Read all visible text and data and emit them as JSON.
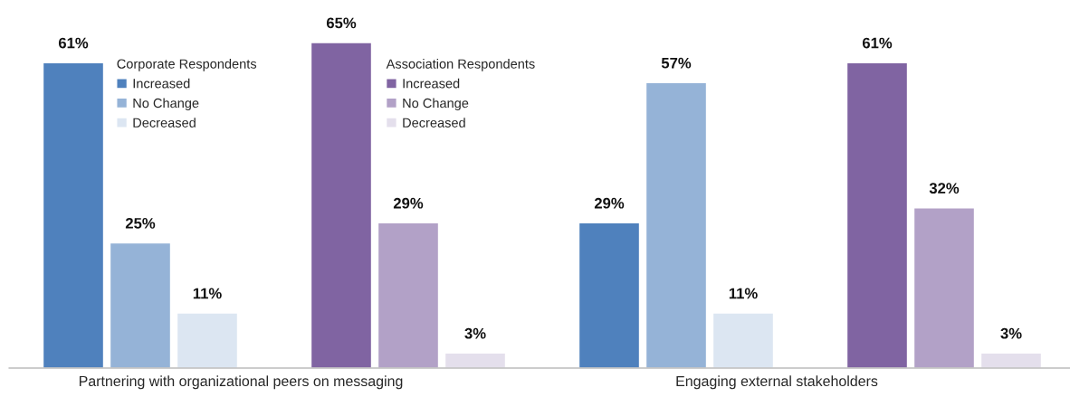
{
  "chart_data": {
    "type": "bar",
    "categories": [
      "Partnering with organizational peers on messaging",
      "Engaging external stakeholders"
    ],
    "series": [
      {
        "name": "Increased",
        "color": "#4f81bd",
        "values": [
          61,
          29
        ],
        "value_labels": [
          "61%",
          "29%"
        ]
      },
      {
        "name": "No Change",
        "color": "#95b3d7",
        "values": [
          25,
          57
        ],
        "value_labels": [
          "25%",
          "57%"
        ]
      },
      {
        "name": "Decreased",
        "color": "#dce6f2",
        "values": [
          11,
          11
        ],
        "value_labels": [
          "11%",
          "11%"
        ]
      },
      {
        "name": "Increased",
        "color": "#8064a2",
        "values": [
          65,
          61
        ],
        "value_labels": [
          "65%",
          "61%"
        ]
      },
      {
        "name": "No Change",
        "color": "#b2a1c7",
        "values": [
          29,
          32
        ],
        "value_labels": [
          "29%",
          "32%"
        ]
      },
      {
        "name": "Decreased",
        "color": "#e4dfec",
        "values": [
          3,
          3
        ],
        "value_labels": [
          "3%",
          "3%"
        ]
      }
    ],
    "annotations": [
      "Corporate Respondents",
      "Association Respondents"
    ],
    "legend": "top",
    "grid": false
  }
}
